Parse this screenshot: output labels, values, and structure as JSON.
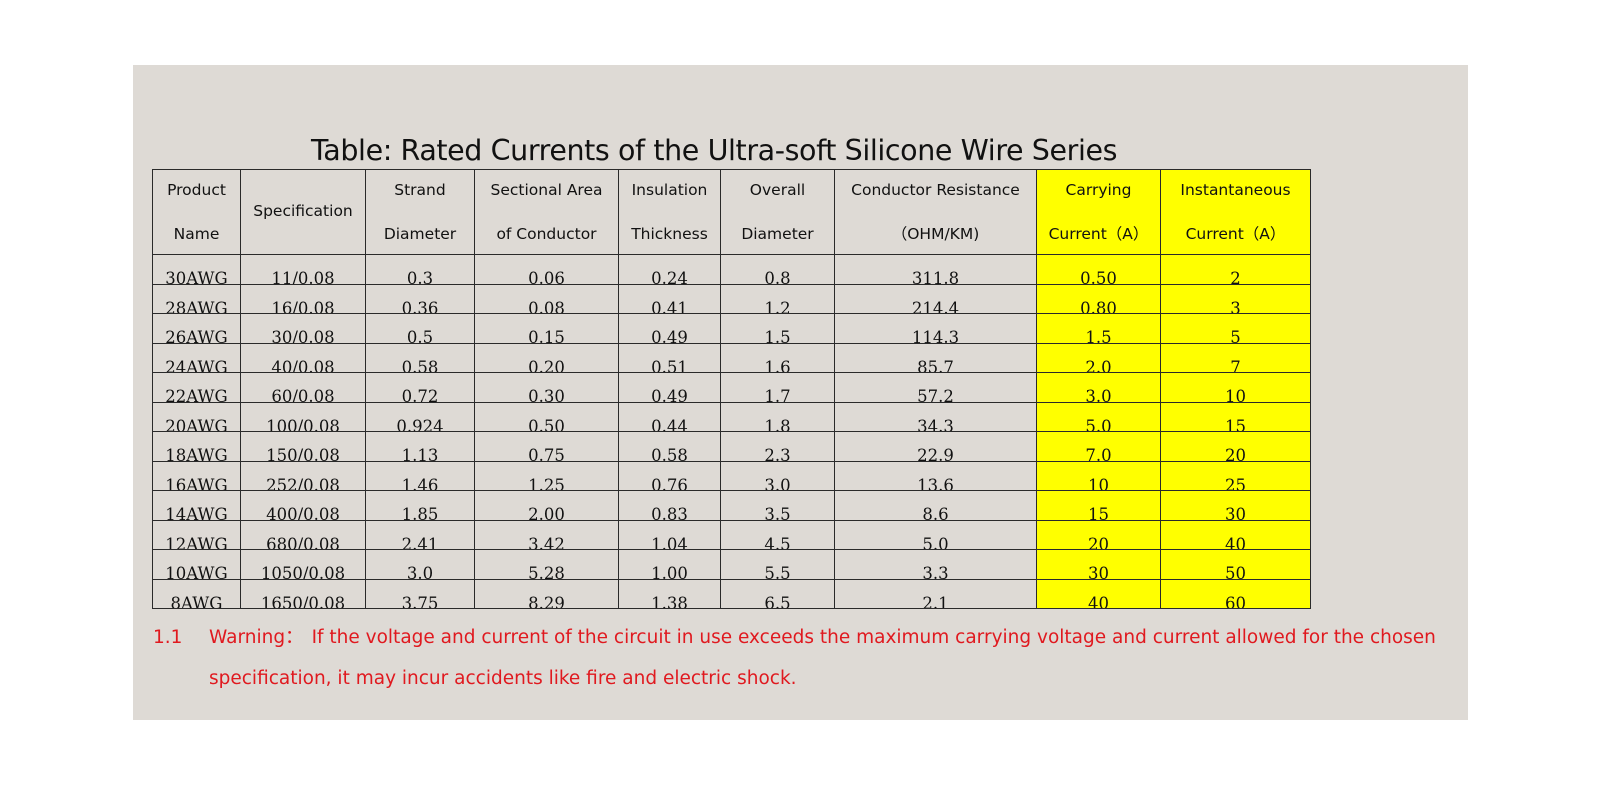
{
  "title": "Table: Rated Currents of the Ultra-soft Silicone Wire Series",
  "colors": {
    "panel_bg": "#dedad5",
    "highlight": "#ffff00",
    "warning": "#e0191f"
  },
  "headers": [
    {
      "line1": "Product",
      "line2": "Name"
    },
    {
      "line1": "Specification",
      "line2": ""
    },
    {
      "line1": "Strand",
      "line2": "Diameter"
    },
    {
      "line1": "Sectional Area",
      "line2": "of Conductor"
    },
    {
      "line1": "Insulation",
      "line2": "Thickness"
    },
    {
      "line1": "Overall",
      "line2": "Diameter"
    },
    {
      "line1": "Conductor Resistance",
      "line2": "（OHM/KM)"
    },
    {
      "line1": "Carrying",
      "line2": "Current（A）"
    },
    {
      "line1": "Instantaneous",
      "line2": "Current（A）"
    }
  ],
  "rows": [
    [
      "30AWG",
      "11/0.08",
      "0.3",
      "0.06",
      "0.24",
      "0.8",
      "311.8",
      "0.50",
      "2"
    ],
    [
      "28AWG",
      "16/0.08",
      "0.36",
      "0.08",
      "0.41",
      "1.2",
      "214.4",
      "0.80",
      "3"
    ],
    [
      "26AWG",
      "30/0.08",
      "0.5",
      "0.15",
      "0.49",
      "1.5",
      "114.3",
      "1.5",
      "5"
    ],
    [
      "24AWG",
      "40/0.08",
      "0.58",
      "0.20",
      "0.51",
      "1.6",
      "85.7",
      "2.0",
      "7"
    ],
    [
      "22AWG",
      "60/0.08",
      "0.72",
      "0.30",
      "0.49",
      "1.7",
      "57.2",
      "3.0",
      "10"
    ],
    [
      "20AWG",
      "100/0.08",
      "0.924",
      "0.50",
      "0.44",
      "1.8",
      "34.3",
      "5.0",
      "15"
    ],
    [
      "18AWG",
      "150/0.08",
      "1.13",
      "0.75",
      "0.58",
      "2.3",
      "22.9",
      "7.0",
      "20"
    ],
    [
      "16AWG",
      "252/0.08",
      "1.46",
      "1.25",
      "0.76",
      "3.0",
      "13.6",
      "10",
      "25"
    ],
    [
      "14AWG",
      "400/0.08",
      "1.85",
      "2.00",
      "0.83",
      "3.5",
      "8.6",
      "15",
      "30"
    ],
    [
      "12AWG",
      "680/0.08",
      "2.41",
      "3.42",
      "1.04",
      "4.5",
      "5.0",
      "20",
      "40"
    ],
    [
      "10AWG",
      "1050/0.08",
      "3.0",
      "5.28",
      "1.00",
      "5.5",
      "3.3",
      "30",
      "50"
    ],
    [
      "8AWG",
      "1650/0.08",
      "3.75",
      "8.29",
      "1.38",
      "6.5",
      "2.1",
      "40",
      "60"
    ]
  ],
  "warning": {
    "number": "1.1",
    "label": "Warning：",
    "text": "If the voltage and current of the circuit in use exceeds the maximum carrying voltage and current allowed for the chosen specification, it may incur accidents like fire and electric shock."
  }
}
